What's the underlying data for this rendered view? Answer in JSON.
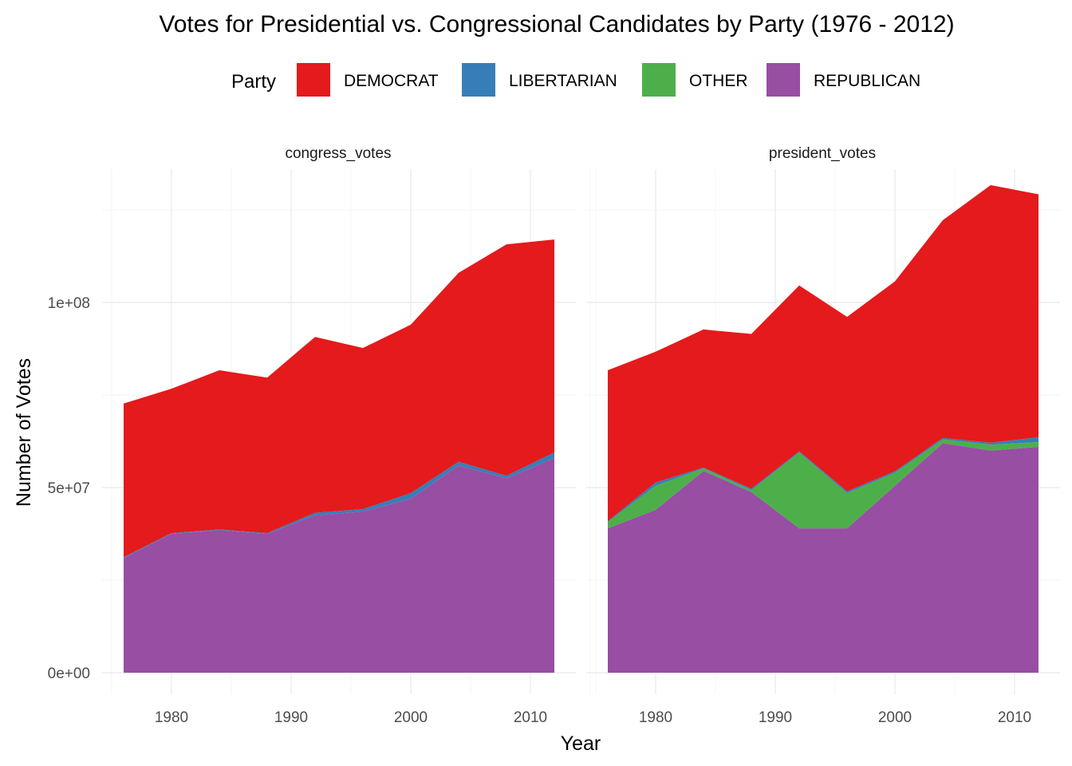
{
  "chart_data": {
    "type": "area",
    "stacked": true,
    "title": "Votes for Presidential vs. Congressional Candidates by Party (1976 - 2012)",
    "xlabel": "Year",
    "ylabel": "Number of Votes",
    "legend": {
      "title": "Party",
      "position": "top",
      "entries": [
        "DEMOCRAT",
        "LIBERTARIAN",
        "OTHER",
        "REPUBLICAN"
      ]
    },
    "colors": {
      "DEMOCRAT": "#E41A1C",
      "LIBERTARIAN": "#377EB8",
      "OTHER": "#4DAF4A",
      "REPUBLICAN": "#984EA3"
    },
    "grid": true,
    "xlim": [
      1974.2,
      2013.8
    ],
    "ylim": [
      -5800000,
      136000000
    ],
    "x_ticks": [
      1980,
      1990,
      2000,
      2010
    ],
    "x_tick_labels": [
      "1980",
      "1990",
      "2000",
      "2010"
    ],
    "y_ticks": [
      0,
      50000000,
      100000000
    ],
    "y_tick_labels": [
      "0e+00",
      "5e+07",
      "1e+08"
    ],
    "x": [
      1976,
      1980,
      1984,
      1988,
      1992,
      1996,
      2000,
      2004,
      2008,
      2012
    ],
    "stack_order": [
      "REPUBLICAN",
      "OTHER",
      "LIBERTARIAN",
      "DEMOCRAT"
    ],
    "panels": [
      {
        "strip": "congress_votes",
        "series": [
          {
            "name": "REPUBLICAN",
            "values": [
              31000000,
              37500000,
              38500000,
              37500000,
              42500000,
              43500000,
              47000000,
              56000000,
              52500000,
              58000000
            ]
          },
          {
            "name": "OTHER",
            "values": [
              0,
              0,
              0,
              0,
              0,
              0,
              0,
              0,
              0,
              0
            ]
          },
          {
            "name": "LIBERTARIAN",
            "values": [
              200000,
              200000,
              200000,
              200000,
              700000,
              700000,
              1500000,
              1000000,
              700000,
              1500000
            ]
          },
          {
            "name": "DEMOCRAT",
            "values": [
              41500000,
              39000000,
              43000000,
              42000000,
              47500000,
              43500000,
              45500000,
              51000000,
              62500000,
              57500000
            ]
          }
        ]
      },
      {
        "strip": "president_votes",
        "series": [
          {
            "name": "REPUBLICAN",
            "values": [
              39000000,
              44000000,
              54500000,
              48800000,
              39000000,
              39000000,
              50500000,
              62000000,
              60000000,
              61000000
            ]
          },
          {
            "name": "OTHER",
            "values": [
              1700000,
              6500000,
              700000,
              500000,
              20500000,
              9500000,
              3500000,
              1000000,
              1600000,
              1300000
            ]
          },
          {
            "name": "LIBERTARIAN",
            "values": [
              200000,
              900000,
              200000,
              400000,
              300000,
              500000,
              400000,
              400000,
              500000,
              1300000
            ]
          },
          {
            "name": "DEMOCRAT",
            "values": [
              40800000,
              35300000,
              37300000,
              41800000,
              44800000,
              47100000,
              51300000,
              58800000,
              69600000,
              65600000
            ]
          }
        ]
      }
    ]
  }
}
